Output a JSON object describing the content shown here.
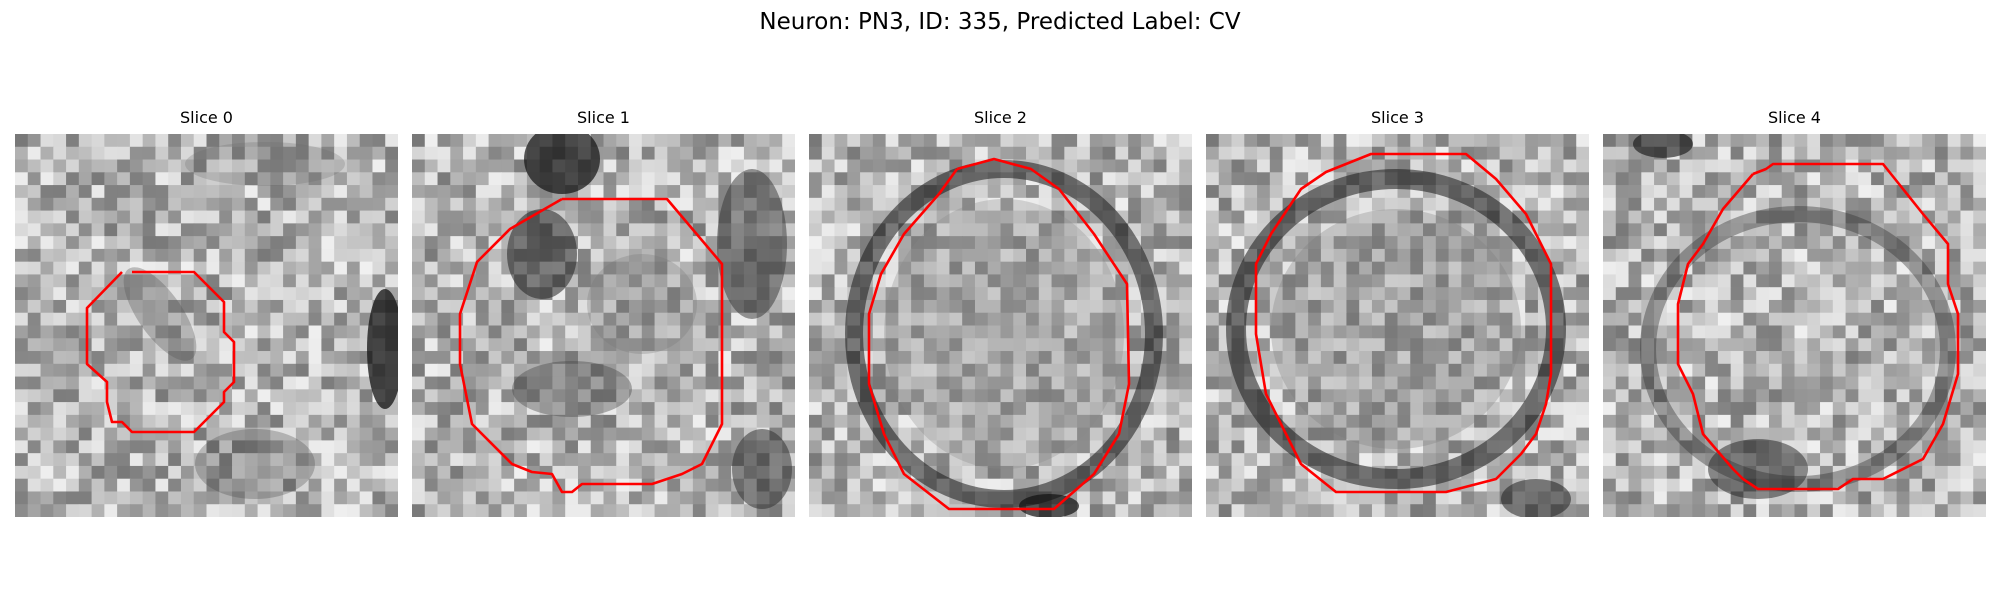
{
  "figure": {
    "title": "Neuron: PN3, ID: 335, Predicted Label: CV"
  },
  "slices": [
    {
      "title": "Slice 0"
    },
    {
      "title": "Slice 1"
    },
    {
      "title": "Slice 2"
    },
    {
      "title": "Slice 3"
    },
    {
      "title": "Slice 4"
    }
  ],
  "colors": {
    "outline": "#ff0000",
    "background": "#ffffff"
  }
}
